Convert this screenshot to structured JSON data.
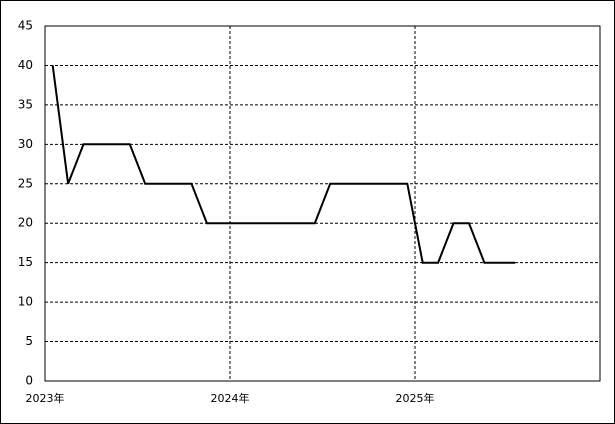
{
  "chart_data": {
    "type": "line",
    "categories": [
      "2023年",
      null,
      null,
      null,
      null,
      null,
      null,
      null,
      null,
      null,
      null,
      null,
      "2024年",
      null,
      null,
      null,
      null,
      null,
      null,
      null,
      null,
      null,
      null,
      null,
      "2025年",
      null,
      null,
      null,
      null,
      null,
      null,
      null,
      null,
      null,
      null,
      null
    ],
    "values": [
      40,
      25,
      30,
      30,
      30,
      30,
      25,
      25,
      25,
      25,
      20,
      20,
      20,
      20,
      20,
      20,
      20,
      20,
      25,
      25,
      25,
      25,
      25,
      25,
      15,
      15,
      20,
      20,
      15,
      15,
      15,
      null,
      null,
      null,
      null,
      null
    ],
    "color": "#000000",
    "ylim": [
      0,
      45
    ],
    "yticks": [
      0,
      5,
      10,
      15,
      20,
      25,
      30,
      35,
      40,
      45
    ],
    "grid": true
  }
}
